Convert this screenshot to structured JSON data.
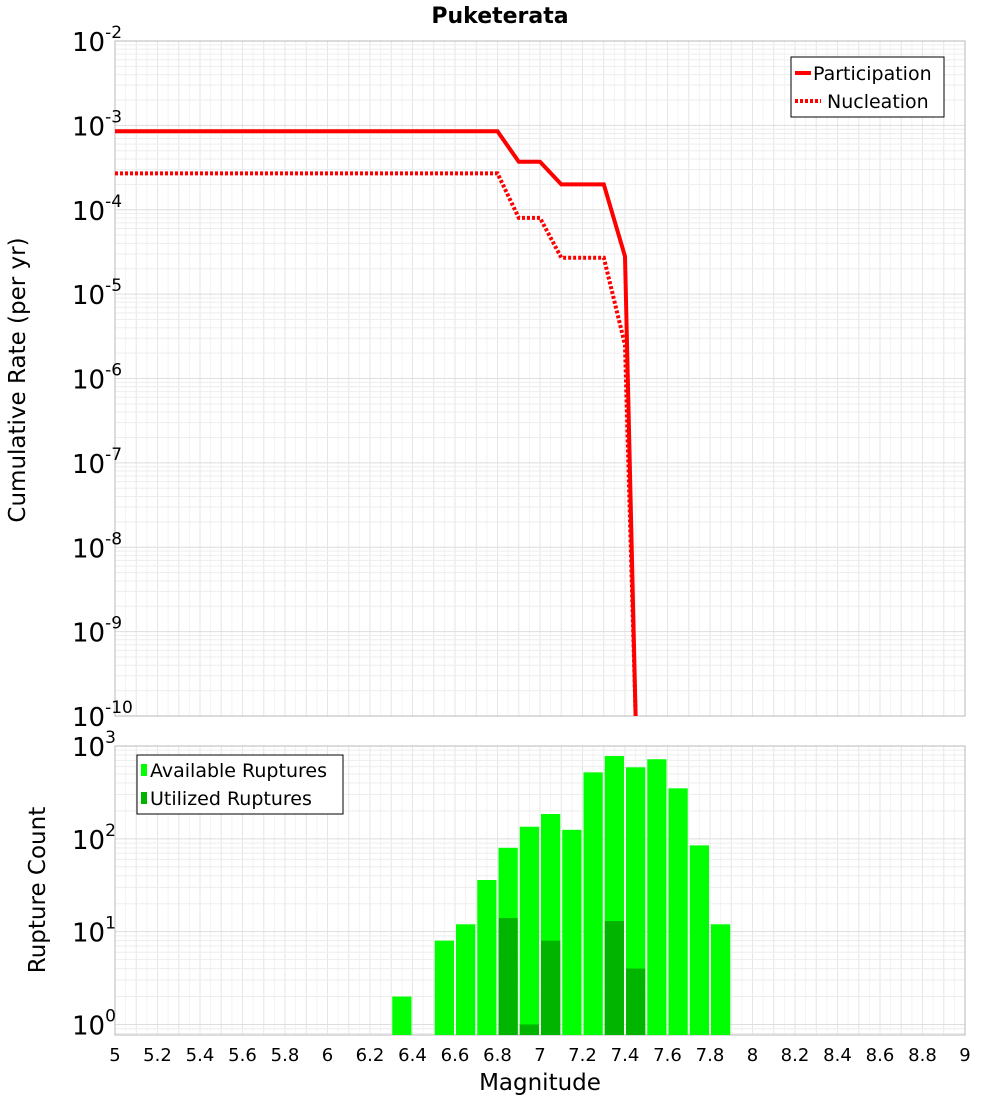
{
  "chart_data": [
    {
      "type": "line",
      "title": "Puketerata",
      "xlabel": "Magnitude",
      "ylabel": "Cumulative Rate (per yr)",
      "xlim": [
        5,
        9
      ],
      "ylim": [
        1e-10,
        0.01
      ],
      "yscale": "log",
      "ytick_base": "10",
      "yticks": [
        {
          "exp": "-2",
          "value": 0.01
        },
        {
          "exp": "-3",
          "value": 0.001
        },
        {
          "exp": "-4",
          "value": 0.0001
        },
        {
          "exp": "-5",
          "value": 1e-05
        },
        {
          "exp": "-6",
          "value": 1e-06
        },
        {
          "exp": "-7",
          "value": 1e-07
        },
        {
          "exp": "-8",
          "value": 1e-08
        },
        {
          "exp": "-9",
          "value": 1e-09
        },
        {
          "exp": "-10",
          "value": 1e-10
        }
      ],
      "legend_position": "top-right",
      "series": [
        {
          "name": "Participation",
          "color": "#ff0000",
          "style": "solid",
          "x": [
            5.0,
            6.8,
            6.9,
            7.0,
            7.1,
            7.2,
            7.3,
            7.4,
            7.45
          ],
          "y": [
            0.00085,
            0.00085,
            0.00037,
            0.00037,
            0.0002,
            0.0002,
            0.0002,
            2.8e-05,
            1e-10
          ]
        },
        {
          "name": "Nucleation",
          "color": "#ff0000",
          "style": "dotted",
          "x": [
            5.0,
            6.8,
            6.9,
            7.0,
            7.1,
            7.2,
            7.3,
            7.4,
            7.45
          ],
          "y": [
            0.00027,
            0.00027,
            8e-05,
            8e-05,
            2.7e-05,
            2.7e-05,
            2.7e-05,
            2.5e-06,
            1e-10
          ]
        }
      ]
    },
    {
      "type": "bar",
      "title": "",
      "xlabel": "Magnitude",
      "ylabel": "Rupture Count",
      "xlim": [
        5,
        9
      ],
      "ylim": [
        0.77,
        1000
      ],
      "yscale": "log",
      "ytick_base": "10",
      "yticks": [
        {
          "exp": "0",
          "value": 1
        },
        {
          "exp": "1",
          "value": 10
        },
        {
          "exp": "2",
          "value": 100
        },
        {
          "exp": "3",
          "value": 1000
        }
      ],
      "xtick_labels": [
        "5",
        "5.2",
        "5.4",
        "5.6",
        "5.8",
        "6",
        "6.2",
        "6.4",
        "6.6",
        "6.8",
        "7",
        "7.2",
        "7.4",
        "7.6",
        "7.8",
        "8",
        "8.2",
        "8.4",
        "8.6",
        "8.8",
        "9"
      ],
      "xtick_values": [
        5.0,
        5.2,
        5.4,
        5.6,
        5.8,
        6.0,
        6.2,
        6.4,
        6.6,
        6.8,
        7.0,
        7.2,
        7.4,
        7.6,
        7.8,
        8.0,
        8.2,
        8.4,
        8.6,
        8.8,
        9.0
      ],
      "bar_width": 0.1,
      "legend_position": "top-left",
      "series": [
        {
          "name": "Available Ruptures",
          "color": "#00ff00",
          "x": [
            6.35,
            6.55,
            6.65,
            6.75,
            6.85,
            6.95,
            7.05,
            7.15,
            7.25,
            7.35,
            7.45,
            7.55,
            7.65,
            7.75,
            7.85
          ],
          "values": [
            2,
            8,
            12,
            36,
            80,
            135,
            185,
            125,
            520,
            780,
            590,
            720,
            350,
            85,
            12
          ]
        },
        {
          "name": "Utilized Ruptures",
          "color": "#00b400",
          "x": [
            6.85,
            6.95,
            7.05,
            7.35,
            7.45
          ],
          "values": [
            14,
            1,
            8,
            13,
            4
          ]
        }
      ]
    }
  ]
}
